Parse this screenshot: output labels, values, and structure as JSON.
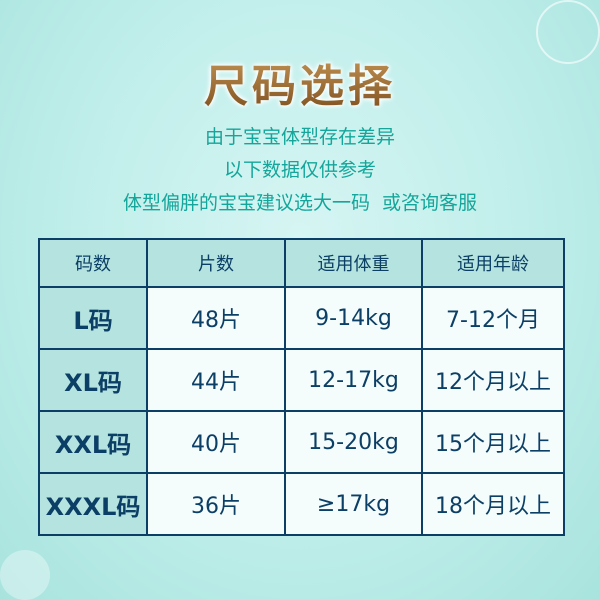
{
  "title": "尺码选择",
  "notes": [
    "由于宝宝体型存在差异",
    "以下数据仅供参考",
    "体型偏胖的宝宝建议选大一码  或咨询客服"
  ],
  "table": {
    "headers": [
      "码数",
      "片数",
      "适用体重",
      "适用年龄"
    ],
    "rows": [
      [
        "L码",
        "48片",
        "9-14kg",
        "7-12个月"
      ],
      [
        "XL码",
        "44片",
        "12-17kg",
        "12个月以上"
      ],
      [
        "XXL码",
        "40片",
        "15-20kg",
        "15个月以上"
      ],
      [
        "XXXL码",
        "36片",
        "≥17kg",
        "18个月以上"
      ]
    ]
  },
  "colors": {
    "accent": "#14a69a",
    "table_border": "#0c3f66",
    "header_bg": "#b5e4e0",
    "title_gold": "#a06a2c"
  }
}
